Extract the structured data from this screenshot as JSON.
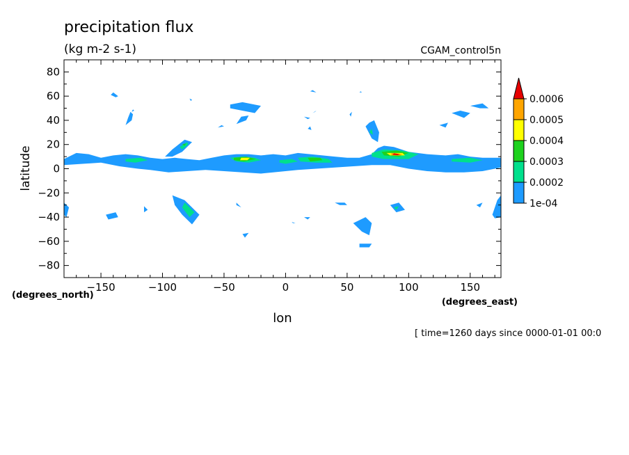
{
  "chart_data": {
    "type": "heatmap",
    "title": "precipitation flux",
    "subtitle": "(kg m-2 s-1)",
    "dataset_label": "CGAM_control5n",
    "xlabel": "lon",
    "x_units": "(degrees_east)",
    "ylabel": "latitude",
    "y_units": "(degrees_north)",
    "time_label": "[ time=1260 days since 0000-01-01 00:0",
    "xlim": [
      -180,
      175
    ],
    "ylim": [
      -90,
      90
    ],
    "x_ticks": [
      -150,
      -100,
      -50,
      0,
      50,
      100,
      150
    ],
    "x_tick_labels": [
      "−150",
      "−100",
      "−50",
      "0",
      "50",
      "100",
      "150"
    ],
    "y_ticks": [
      80,
      60,
      40,
      20,
      0,
      -20,
      -40,
      -60,
      -80
    ],
    "y_tick_labels": [
      "80",
      "60",
      "40",
      "20",
      "0",
      "−20",
      "−40",
      "−60",
      "−80"
    ],
    "colorbar": {
      "levels": [
        0.0001,
        0.0002,
        0.0003,
        0.0004,
        0.0005,
        0.0006
      ],
      "labels": [
        "1e-04",
        "0.0002",
        "0.0003",
        "0.0004",
        "0.0005",
        "0.0006"
      ],
      "colors": [
        "#1e9bff",
        "#00e08c",
        "#1ed21e",
        "#ffff00",
        "#ffa500",
        "#e60000"
      ]
    },
    "contour_regions": [
      {
        "level": 0,
        "pts": [
          [
            -180,
            8
          ],
          [
            -170,
            13
          ],
          [
            -160,
            12
          ],
          [
            -150,
            9
          ],
          [
            -140,
            11
          ],
          [
            -130,
            12
          ],
          [
            -120,
            11
          ],
          [
            -110,
            9
          ],
          [
            -100,
            8
          ],
          [
            -90,
            9
          ],
          [
            -80,
            8
          ],
          [
            -70,
            7
          ],
          [
            -60,
            9
          ],
          [
            -50,
            11
          ],
          [
            -40,
            12
          ],
          [
            -30,
            12
          ],
          [
            -20,
            11
          ],
          [
            -10,
            12
          ],
          [
            0,
            11
          ],
          [
            10,
            13
          ],
          [
            20,
            12
          ],
          [
            30,
            11
          ],
          [
            40,
            10
          ],
          [
            50,
            9
          ],
          [
            60,
            9
          ],
          [
            70,
            12
          ],
          [
            75,
            17
          ],
          [
            80,
            19
          ],
          [
            88,
            18
          ],
          [
            100,
            14
          ],
          [
            115,
            12
          ],
          [
            130,
            11
          ],
          [
            140,
            12
          ],
          [
            150,
            10
          ],
          [
            160,
            9
          ],
          [
            175,
            9
          ],
          [
            175,
            1
          ],
          [
            160,
            -2
          ],
          [
            145,
            -3
          ],
          [
            130,
            -3
          ],
          [
            115,
            -2
          ],
          [
            100,
            0
          ],
          [
            85,
            3
          ],
          [
            70,
            3
          ],
          [
            55,
            2
          ],
          [
            40,
            1
          ],
          [
            25,
            0
          ],
          [
            10,
            -1
          ],
          [
            0,
            -2
          ],
          [
            -10,
            -3
          ],
          [
            -20,
            -4
          ],
          [
            -35,
            -3
          ],
          [
            -50,
            -2
          ],
          [
            -65,
            -1
          ],
          [
            -80,
            -2
          ],
          [
            -95,
            -3
          ],
          [
            -110,
            -1
          ],
          [
            -120,
            0
          ],
          [
            -135,
            2
          ],
          [
            -150,
            5
          ],
          [
            -165,
            4
          ],
          [
            -180,
            3
          ]
        ]
      },
      {
        "level": 1,
        "pts": [
          [
            -45,
            9
          ],
          [
            -35,
            10
          ],
          [
            -25,
            9
          ],
          [
            -20,
            7
          ],
          [
            -30,
            5
          ],
          [
            -40,
            6
          ]
        ]
      },
      {
        "level": 1,
        "pts": [
          [
            -130,
            8
          ],
          [
            -118,
            9
          ],
          [
            -112,
            7
          ],
          [
            -122,
            5
          ],
          [
            -130,
            6
          ]
        ]
      },
      {
        "level": 1,
        "pts": [
          [
            10,
            9
          ],
          [
            22,
            10
          ],
          [
            35,
            8
          ],
          [
            38,
            5
          ],
          [
            25,
            5
          ],
          [
            12,
            6
          ]
        ]
      },
      {
        "level": 1,
        "pts": [
          [
            70,
            13
          ],
          [
            80,
            16
          ],
          [
            95,
            15
          ],
          [
            108,
            12
          ],
          [
            100,
            8
          ],
          [
            80,
            8
          ],
          [
            70,
            10
          ]
        ]
      },
      {
        "level": 1,
        "pts": [
          [
            135,
            8
          ],
          [
            150,
            9
          ],
          [
            160,
            7
          ],
          [
            150,
            5
          ],
          [
            135,
            6
          ]
        ]
      },
      {
        "level": 1,
        "pts": [
          [
            -5,
            7
          ],
          [
            5,
            8
          ],
          [
            10,
            6
          ],
          [
            0,
            4
          ],
          [
            -5,
            5
          ]
        ]
      },
      {
        "level": 2,
        "pts": [
          [
            -42,
            9
          ],
          [
            -32,
            10
          ],
          [
            -24,
            8
          ],
          [
            -34,
            6
          ],
          [
            -42,
            7
          ]
        ]
      },
      {
        "level": 2,
        "pts": [
          [
            18,
            9
          ],
          [
            28,
            9
          ],
          [
            30,
            7
          ],
          [
            20,
            6
          ]
        ]
      },
      {
        "level": 2,
        "pts": [
          [
            78,
            14
          ],
          [
            90,
            15
          ],
          [
            100,
            13
          ],
          [
            92,
            10
          ],
          [
            80,
            11
          ]
        ]
      },
      {
        "level": 3,
        "pts": [
          [
            -36,
            9
          ],
          [
            -29,
            9
          ],
          [
            -31,
            7
          ],
          [
            -37,
            7
          ]
        ]
      },
      {
        "level": 3,
        "pts": [
          [
            82,
            13
          ],
          [
            95,
            13
          ],
          [
            97,
            11
          ],
          [
            85,
            11
          ]
        ]
      },
      {
        "level": 4,
        "pts": [
          [
            86,
            13
          ],
          [
            95,
            12
          ],
          [
            93,
            11
          ],
          [
            86,
            11
          ]
        ]
      },
      {
        "level": 5,
        "pts": [
          [
            88,
            12.8
          ],
          [
            93,
            12
          ],
          [
            91,
            11.3
          ],
          [
            87,
            11.5
          ]
        ]
      },
      {
        "level": 0,
        "pts": [
          [
            -92,
            16
          ],
          [
            -82,
            24
          ],
          [
            -76,
            22
          ],
          [
            -84,
            14
          ],
          [
            -92,
            10
          ],
          [
            -98,
            10
          ]
        ]
      },
      {
        "level": 1,
        "pts": [
          [
            -86,
            18
          ],
          [
            -80,
            22
          ],
          [
            -79,
            20
          ],
          [
            -84,
            16
          ]
        ]
      },
      {
        "level": 2,
        "pts": [
          [
            -84,
            20
          ],
          [
            -81,
            21
          ],
          [
            -82,
            19
          ]
        ]
      },
      {
        "level": 0,
        "pts": [
          [
            -130,
            36
          ],
          [
            -125,
            40
          ],
          [
            -124,
            45
          ],
          [
            -126,
            47
          ],
          [
            -128,
            42
          ]
        ]
      },
      {
        "level": 0,
        "pts": [
          [
            -140,
            63
          ],
          [
            -136,
            60
          ],
          [
            -138,
            59
          ],
          [
            -142,
            61
          ]
        ]
      },
      {
        "level": 0,
        "pts": [
          [
            -124,
            49
          ],
          [
            -123,
            48
          ],
          [
            -125,
            47
          ]
        ]
      },
      {
        "level": 0,
        "pts": [
          [
            -45,
            50
          ],
          [
            -25,
            46
          ],
          [
            -20,
            52
          ],
          [
            -35,
            55
          ],
          [
            -45,
            53
          ]
        ]
      },
      {
        "level": 0,
        "pts": [
          [
            -40,
            37
          ],
          [
            -32,
            40
          ],
          [
            -30,
            44
          ],
          [
            -36,
            43
          ]
        ]
      },
      {
        "level": 0,
        "pts": [
          [
            -55,
            34
          ],
          [
            -50,
            35
          ],
          [
            -52,
            36
          ]
        ]
      },
      {
        "level": 0,
        "pts": [
          [
            20,
            64
          ],
          [
            25,
            63
          ],
          [
            22,
            65
          ]
        ]
      },
      {
        "level": 0,
        "pts": [
          [
            25,
            48
          ],
          [
            22,
            46
          ],
          [
            24,
            47
          ]
        ]
      },
      {
        "level": 0,
        "pts": [
          [
            15,
            43
          ],
          [
            20,
            42
          ],
          [
            18,
            41
          ]
        ]
      },
      {
        "level": 0,
        "pts": [
          [
            65,
            35
          ],
          [
            70,
            25
          ],
          [
            75,
            22
          ],
          [
            76,
            30
          ],
          [
            72,
            40
          ],
          [
            68,
            38
          ]
        ]
      },
      {
        "level": 1,
        "pts": [
          [
            68,
            30
          ],
          [
            71,
            28
          ],
          [
            70,
            33
          ]
        ]
      },
      {
        "level": 0,
        "pts": [
          [
            135,
            46
          ],
          [
            145,
            42
          ],
          [
            150,
            46
          ],
          [
            142,
            48
          ]
        ]
      },
      {
        "level": 0,
        "pts": [
          [
            125,
            36
          ],
          [
            130,
            34
          ],
          [
            132,
            38
          ]
        ]
      },
      {
        "level": 0,
        "pts": [
          [
            150,
            52
          ],
          [
            160,
            54
          ],
          [
            165,
            50
          ],
          [
            158,
            50
          ]
        ]
      },
      {
        "level": 0,
        "pts": [
          [
            52,
            45
          ],
          [
            54,
            47
          ],
          [
            53,
            43
          ]
        ]
      },
      {
        "level": 0,
        "pts": [
          [
            60,
            63
          ],
          [
            61,
            64
          ],
          [
            62,
            63
          ]
        ]
      },
      {
        "level": 0,
        "pts": [
          [
            -92,
            -22
          ],
          [
            -82,
            -26
          ],
          [
            -70,
            -38
          ],
          [
            -76,
            -46
          ],
          [
            -84,
            -38
          ],
          [
            -90,
            -30
          ]
        ]
      },
      {
        "level": 1,
        "pts": [
          [
            -82,
            -28
          ],
          [
            -74,
            -36
          ],
          [
            -78,
            -40
          ],
          [
            -84,
            -32
          ]
        ]
      },
      {
        "level": 0,
        "pts": [
          [
            -180,
            -28
          ],
          [
            -176,
            -32
          ],
          [
            -178,
            -40
          ],
          [
            -180,
            -38
          ]
        ]
      },
      {
        "level": 0,
        "pts": [
          [
            -146,
            -38
          ],
          [
            -138,
            -36
          ],
          [
            -136,
            -40
          ],
          [
            -144,
            -42
          ]
        ]
      },
      {
        "level": 0,
        "pts": [
          [
            -115,
            -31
          ],
          [
            -112,
            -34
          ],
          [
            -115,
            -36
          ]
        ]
      },
      {
        "level": 0,
        "pts": [
          [
            -40,
            -28
          ],
          [
            -36,
            -32
          ],
          [
            -40,
            -30
          ]
        ]
      },
      {
        "level": 0,
        "pts": [
          [
            -35,
            -54
          ],
          [
            -30,
            -53
          ],
          [
            -33,
            -57
          ]
        ]
      },
      {
        "level": 0,
        "pts": [
          [
            15,
            -40
          ],
          [
            20,
            -40
          ],
          [
            18,
            -42
          ]
        ]
      },
      {
        "level": 0,
        "pts": [
          [
            5,
            -44
          ],
          [
            8,
            -45
          ],
          [
            6,
            -45
          ]
        ]
      },
      {
        "level": 0,
        "pts": [
          [
            40,
            -28
          ],
          [
            48,
            -28
          ],
          [
            50,
            -30
          ],
          [
            44,
            -30
          ]
        ]
      },
      {
        "level": 0,
        "pts": [
          [
            55,
            -45
          ],
          [
            65,
            -40
          ],
          [
            70,
            -45
          ],
          [
            68,
            -55
          ],
          [
            62,
            -52
          ]
        ]
      },
      {
        "level": 0,
        "pts": [
          [
            60,
            -62
          ],
          [
            70,
            -62
          ],
          [
            68,
            -65
          ],
          [
            60,
            -65
          ]
        ]
      },
      {
        "level": 0,
        "pts": [
          [
            85,
            -30
          ],
          [
            92,
            -28
          ],
          [
            97,
            -34
          ],
          [
            90,
            -36
          ]
        ]
      },
      {
        "level": 1,
        "pts": [
          [
            88,
            -32
          ],
          [
            92,
            -31
          ],
          [
            90,
            -34
          ]
        ]
      },
      {
        "level": 0,
        "pts": [
          [
            155,
            -30
          ],
          [
            160,
            -28
          ],
          [
            158,
            -32
          ]
        ]
      },
      {
        "level": 0,
        "pts": [
          [
            168,
            -38
          ],
          [
            172,
            -26
          ],
          [
            175,
            -22
          ],
          [
            175,
            -40
          ],
          [
            170,
            -41
          ]
        ]
      },
      {
        "level": 0,
        "pts": [
          [
            18,
            33
          ],
          [
            20,
            35
          ],
          [
            21,
            32
          ]
        ]
      },
      {
        "level": 0,
        "pts": [
          [
            -78,
            58
          ],
          [
            -76,
            57
          ],
          [
            -77,
            56
          ]
        ]
      }
    ]
  }
}
